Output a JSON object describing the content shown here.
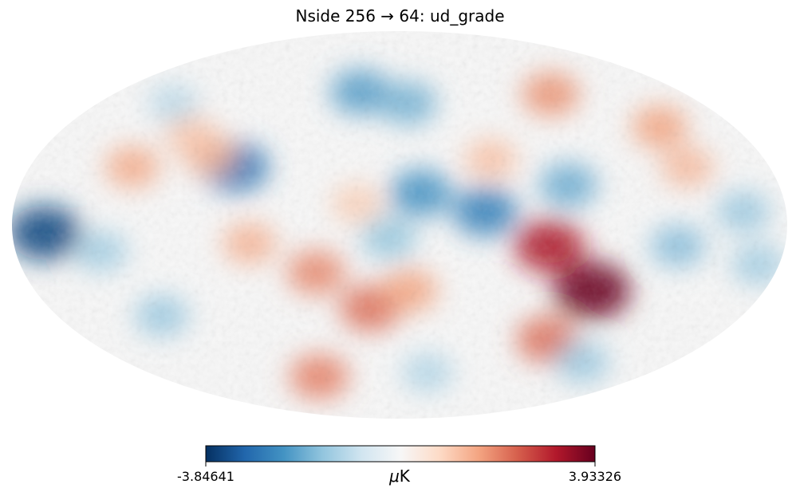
{
  "chart_data": {
    "type": "heatmap",
    "projection": "mollweide",
    "title": "Nside 256 → 64: ud_grade",
    "colorbar": {
      "min": -3.84641,
      "max": 3.93326,
      "min_label": "-3.84641",
      "max_label": "3.93326",
      "unit_symbol": "μ",
      "unit": "K",
      "colormap": "RdBu_r",
      "colors": [
        "#053061",
        "#2166ac",
        "#4393c3",
        "#92c5de",
        "#d1e5f0",
        "#f7f7f7",
        "#fddbc7",
        "#f4a582",
        "#d6604d",
        "#b2182b",
        "#67001f"
      ],
      "orientation": "horizontal"
    },
    "features": [
      {
        "lon": 25,
        "lat": 53,
        "value": -2.1
      },
      {
        "lon": -5,
        "lat": 48,
        "value": -1.8
      },
      {
        "lon": -95,
        "lat": 52,
        "value": 1.8
      },
      {
        "lon": 80,
        "lat": 22,
        "value": -2.8
      },
      {
        "lon": 95,
        "lat": 27,
        "value": 1.4
      },
      {
        "lon": 130,
        "lat": 22,
        "value": 1.5
      },
      {
        "lon": 20,
        "lat": 8,
        "value": 1.0
      },
      {
        "lon": -10,
        "lat": 12,
        "value": -2.3
      },
      {
        "lon": -40,
        "lat": 5,
        "value": -2.6
      },
      {
        "lon": -80,
        "lat": 15,
        "value": -1.9
      },
      {
        "lon": 165,
        "lat": -3,
        "value": -3.5
      },
      {
        "lon": 140,
        "lat": -10,
        "value": -1.3
      },
      {
        "lon": 125,
        "lat": -35,
        "value": -1.4
      },
      {
        "lon": 70,
        "lat": -7,
        "value": 1.4
      },
      {
        "lon": 40,
        "lat": -18,
        "value": 1.9
      },
      {
        "lon": 15,
        "lat": -32,
        "value": 2.2
      },
      {
        "lon": -5,
        "lat": -25,
        "value": 1.6
      },
      {
        "lon": -70,
        "lat": -8,
        "value": 3.2
      },
      {
        "lon": -95,
        "lat": -25,
        "value": 3.9
      },
      {
        "lon": -85,
        "lat": -45,
        "value": 2.2
      },
      {
        "lon": -140,
        "lat": 22,
        "value": 1.3
      },
      {
        "lon": -160,
        "lat": 5,
        "value": -1.4
      },
      {
        "lon": -170,
        "lat": -15,
        "value": -1.3
      },
      {
        "lon": -130,
        "lat": -8,
        "value": -1.6
      },
      {
        "lon": -120,
        "lat": -55,
        "value": -1.4
      },
      {
        "lon": 60,
        "lat": -62,
        "value": 2.0
      },
      {
        "lon": -20,
        "lat": -60,
        "value": -1.1
      },
      {
        "lon": 110,
        "lat": 35,
        "value": 1.1
      },
      {
        "lon": 135,
        "lat": 48,
        "value": -1.0
      },
      {
        "lon": -140,
        "lat": 38,
        "value": 1.6
      },
      {
        "lon": 5,
        "lat": -5,
        "value": -1.5
      },
      {
        "lon": -45,
        "lat": 25,
        "value": 1.2
      }
    ]
  }
}
